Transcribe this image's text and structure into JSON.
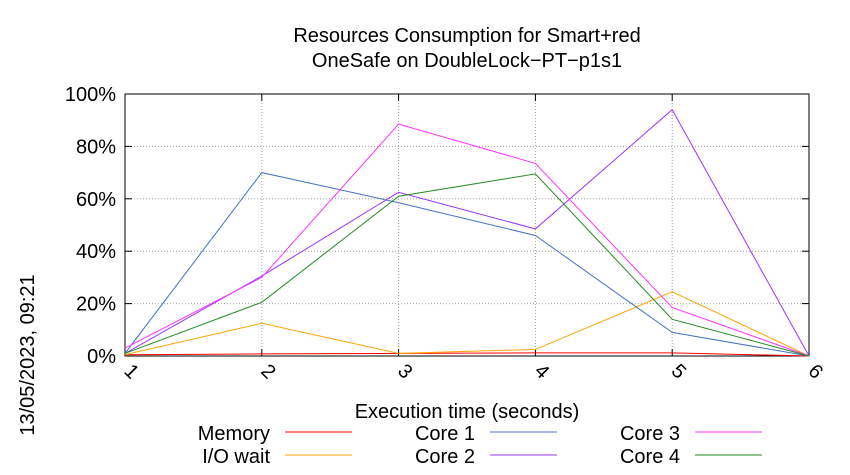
{
  "chart_data": {
    "type": "line",
    "title_line1": "Resources Consumption for Smart+red",
    "title_line2": "OneSafe on DoubleLock−PT−p1s1",
    "xlabel": "Execution time (seconds)",
    "ylabel": "",
    "side_label": "13/05/2023, 09:21",
    "xlim": [
      1,
      6
    ],
    "ylim": [
      0,
      100
    ],
    "x_ticks": [
      "1",
      "2",
      "3",
      "4",
      "5",
      "6"
    ],
    "y_ticks": [
      "0%",
      "20%",
      "40%",
      "60%",
      "80%",
      "100%"
    ],
    "grid": true,
    "legend_position": "bottom",
    "x": [
      1,
      2,
      3,
      4,
      5,
      6
    ],
    "series": [
      {
        "name": "Memory",
        "color": "#ff0000",
        "values": [
          0.5,
          0.8,
          1.0,
          1.2,
          1.2,
          0
        ]
      },
      {
        "name": "I/O wait",
        "color": "#ffa500",
        "values": [
          0.5,
          12.5,
          1,
          2.5,
          24.5,
          0
        ]
      },
      {
        "name": "Core 1",
        "color": "#4472c4",
        "values": [
          1,
          70,
          58.5,
          46,
          9,
          0
        ]
      },
      {
        "name": "Core 2",
        "color": "#9933ff",
        "values": [
          1,
          30.5,
          62.5,
          48.5,
          94,
          0
        ]
      },
      {
        "name": "Core 3",
        "color": "#ff33ff",
        "values": [
          3,
          30,
          88.5,
          73.5,
          18.5,
          0
        ]
      },
      {
        "name": "Core 4",
        "color": "#228b22",
        "values": [
          1,
          20.5,
          61,
          69.5,
          14,
          0
        ]
      }
    ]
  }
}
